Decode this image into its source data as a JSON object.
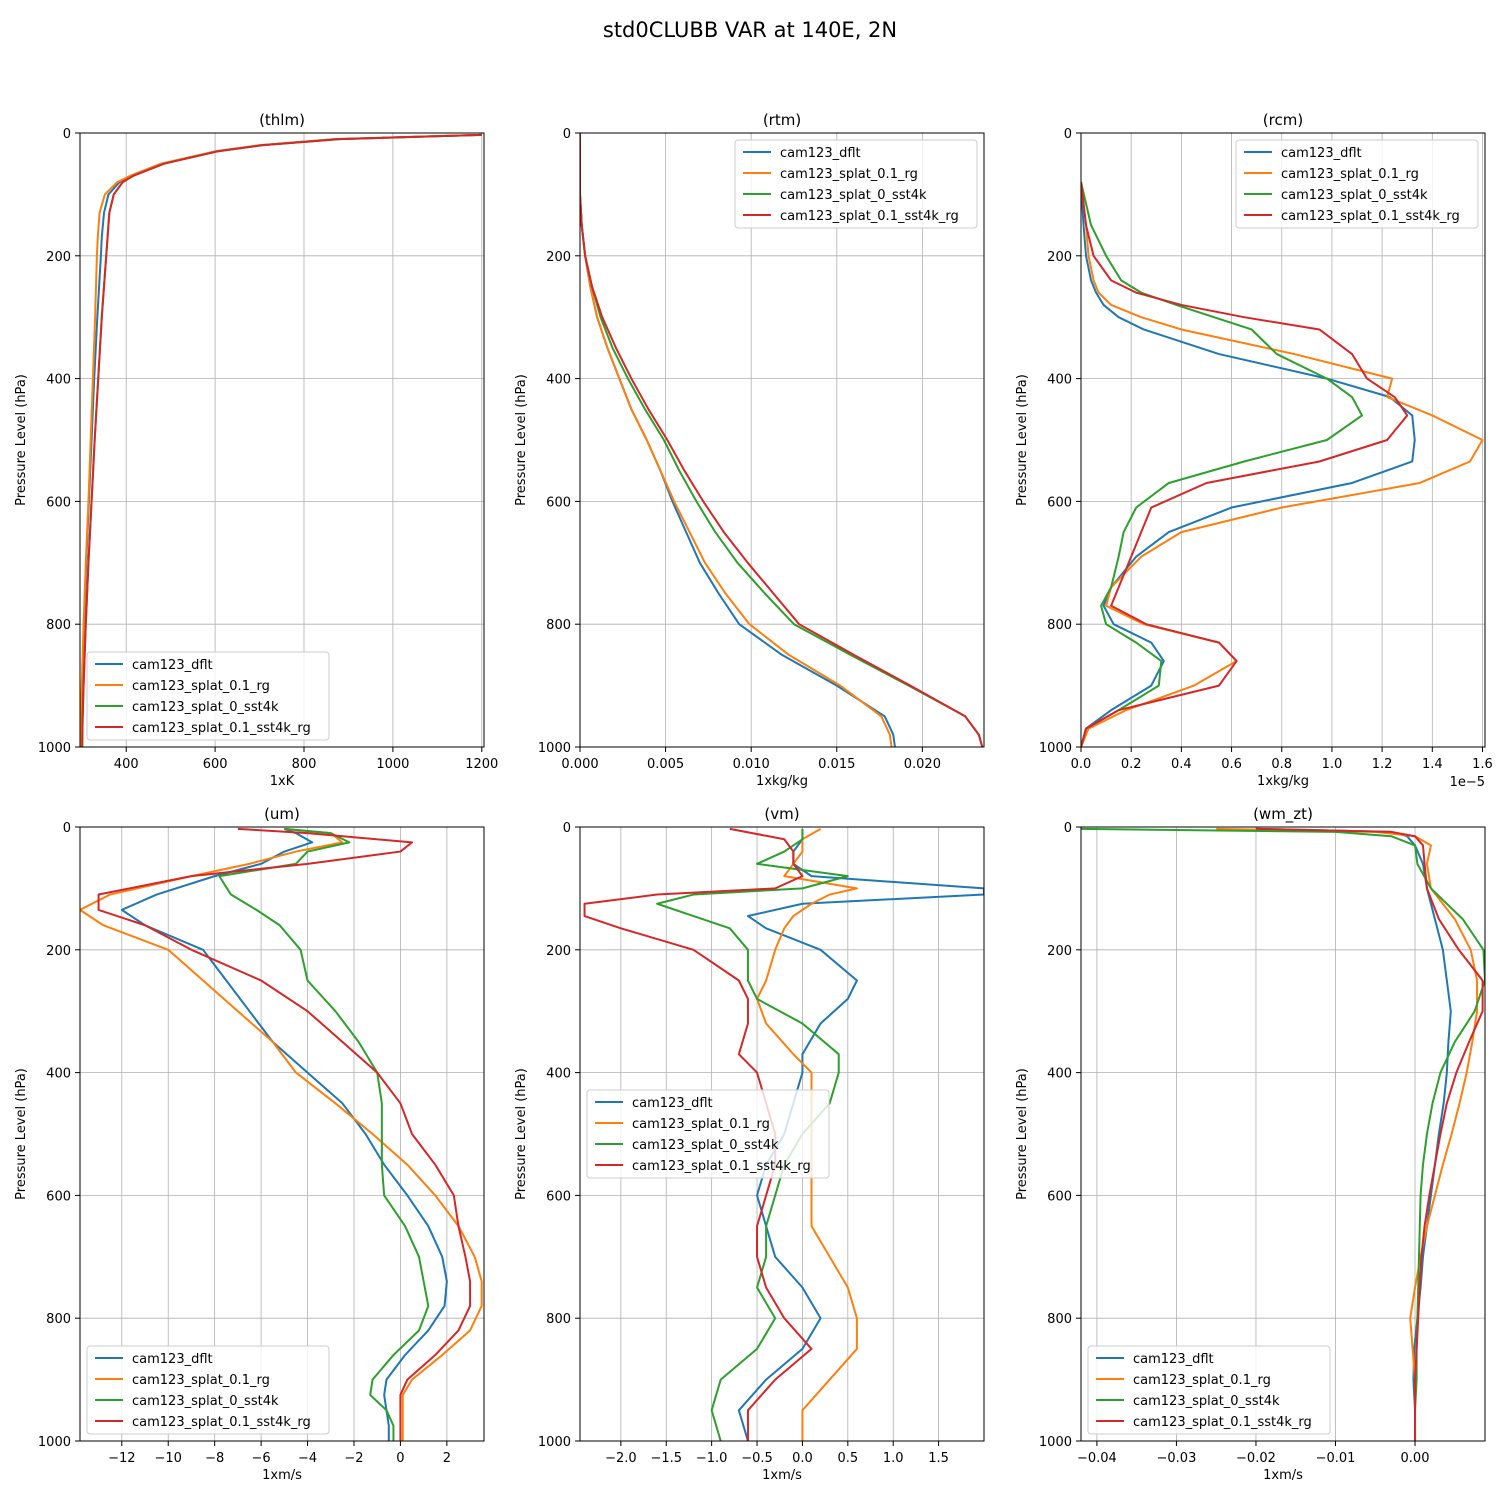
{
  "figure_title": "std0CLUBB VAR at 140E, 2N",
  "colors": {
    "cam123_dflt": "#1f77b4",
    "cam123_splat_0.1_rg": "#ff7f0e",
    "cam123_splat_0_sst4k": "#2ca02c",
    "cam123_splat_0.1_sst4k_rg": "#d62728"
  },
  "chart_data": [
    {
      "type": "line",
      "title": "(thlm)",
      "xlabel": "1xK",
      "ylabel": "Pressure Level (hPa)",
      "xlim": [
        296,
        1205
      ],
      "ylim": [
        1000,
        0
      ],
      "xticks": [
        400,
        600,
        800,
        1000,
        1200
      ],
      "xtick_labels": [
        "400",
        "600",
        "800",
        "1000",
        "1200"
      ],
      "yticks": [
        0,
        200,
        400,
        600,
        800,
        1000
      ],
      "grid": true,
      "legend": "lower left",
      "y": [
        3,
        10,
        20,
        30,
        50,
        70,
        80,
        100,
        130,
        170,
        200,
        300,
        400,
        500,
        600,
        700,
        800,
        900,
        950,
        1000
      ],
      "series": [
        {
          "name": "cam123_dflt",
          "values": [
            1200,
            870,
            700,
            600,
            480,
            410,
            385,
            360,
            350,
            345,
            343,
            335,
            328,
            322,
            316,
            310,
            305,
            301,
            299,
            298
          ]
        },
        {
          "name": "cam123_splat_0.1_rg",
          "values": [
            1200,
            870,
            700,
            600,
            478,
            408,
            380,
            352,
            340,
            336,
            334,
            330,
            325,
            320,
            315,
            309,
            304,
            300,
            298,
            297
          ]
        },
        {
          "name": "cam123_splat_0_sst4k",
          "values": [
            1200,
            880,
            705,
            605,
            485,
            415,
            392,
            372,
            362,
            358,
            355,
            345,
            337,
            329,
            322,
            315,
            309,
            304,
            302,
            301
          ]
        },
        {
          "name": "cam123_splat_0.1_sst4k_rg",
          "values": [
            1200,
            880,
            705,
            605,
            485,
            415,
            392,
            372,
            362,
            358,
            355,
            345,
            337,
            329,
            322,
            315,
            309,
            304,
            302,
            301
          ]
        }
      ]
    },
    {
      "type": "line",
      "title": "(rtm)",
      "xlabel": "1xkg/kg",
      "ylabel": "Pressure Level (hPa)",
      "xlim": [
        0,
        0.0236
      ],
      "ylim": [
        1000,
        0
      ],
      "xticks": [
        0,
        0.005,
        0.01,
        0.015,
        0.02
      ],
      "xtick_labels": [
        "0.000",
        "0.005",
        "0.010",
        "0.015",
        "0.020"
      ],
      "yticks": [
        0,
        200,
        400,
        600,
        800,
        1000
      ],
      "grid": true,
      "legend": "upper right",
      "y": [
        0,
        100,
        150,
        200,
        250,
        300,
        350,
        400,
        450,
        500,
        550,
        600,
        650,
        700,
        750,
        800,
        850,
        900,
        950,
        980,
        1000
      ],
      "series": [
        {
          "name": "cam123_dflt",
          "values": [
            0,
            0,
            0.0001,
            0.0003,
            0.0006,
            0.001,
            0.0016,
            0.0023,
            0.003,
            0.0039,
            0.0047,
            0.0054,
            0.0062,
            0.007,
            0.0081,
            0.0093,
            0.0118,
            0.015,
            0.0178,
            0.0183,
            0.0184
          ]
        },
        {
          "name": "cam123_splat_0.1_rg",
          "values": [
            0,
            0,
            0.0001,
            0.0003,
            0.0006,
            0.001,
            0.0016,
            0.0023,
            0.003,
            0.0039,
            0.0047,
            0.0055,
            0.0064,
            0.0073,
            0.0085,
            0.0099,
            0.0122,
            0.0152,
            0.0176,
            0.0181,
            0.0182
          ]
        },
        {
          "name": "cam123_splat_0_sst4k",
          "values": [
            0,
            0,
            0.0001,
            0.0003,
            0.0007,
            0.0012,
            0.0019,
            0.0028,
            0.0038,
            0.0049,
            0.0058,
            0.0068,
            0.0079,
            0.0092,
            0.0108,
            0.0125,
            0.0158,
            0.0192,
            0.0225,
            0.0233,
            0.0235
          ]
        },
        {
          "name": "cam123_splat_0.1_sst4k_rg",
          "values": [
            0,
            0,
            0.0001,
            0.0003,
            0.0007,
            0.0013,
            0.0021,
            0.003,
            0.004,
            0.0051,
            0.0061,
            0.0072,
            0.0084,
            0.0098,
            0.0113,
            0.0128,
            0.016,
            0.0193,
            0.0225,
            0.0233,
            0.0235
          ]
        }
      ]
    },
    {
      "type": "line",
      "title": "(rcm)",
      "xlabel": "1xkg/kg",
      "offset_text": "1e−5",
      "ylabel": "Pressure Level (hPa)",
      "xlim": [
        0,
        1.61e-05
      ],
      "ylim": [
        1000,
        0
      ],
      "xticks": [
        0,
        2e-06,
        4e-06,
        6e-06,
        8e-06,
        1e-05,
        1.2e-05,
        1.4e-05,
        1.6e-05
      ],
      "xtick_labels": [
        "0.0",
        "0.2",
        "0.4",
        "0.6",
        "0.8",
        "1.0",
        "1.2",
        "1.4",
        "1.6"
      ],
      "yticks": [
        0,
        200,
        400,
        600,
        800,
        1000
      ],
      "grid": true,
      "legend": "upper right",
      "y": [
        80,
        150,
        200,
        240,
        260,
        280,
        300,
        320,
        360,
        400,
        430,
        460,
        500,
        535,
        570,
        610,
        650,
        690,
        740,
        770,
        800,
        830,
        860,
        900,
        940,
        970,
        1000
      ],
      "series": [
        {
          "name": "cam123_dflt",
          "values": [
            0,
            1e-07,
            2e-07,
            4e-07,
            6e-07,
            9e-07,
            1.5e-06,
            2.5e-06,
            5.5e-06,
            9.8e-06,
            1.23e-05,
            1.32e-05,
            1.33e-05,
            1.32e-05,
            1.08e-05,
            6e-06,
            3.5e-06,
            2.2e-06,
            1.2e-06,
            9e-07,
            1.3e-06,
            2.8e-06,
            3.3e-06,
            2.8e-06,
            1.2e-06,
            2e-07,
            0
          ]
        },
        {
          "name": "cam123_splat_0.1_rg",
          "values": [
            0,
            2e-07,
            3e-07,
            5e-07,
            7e-07,
            1.2e-06,
            2.4e-06,
            4e-06,
            8.5e-06,
            1.24e-05,
            1.22e-05,
            1.4e-05,
            1.6e-05,
            1.55e-05,
            1.35e-05,
            8e-06,
            4e-06,
            2.4e-06,
            1.2e-06,
            1e-06,
            2.5e-06,
            5.5e-06,
            6.2e-06,
            4.5e-06,
            1.8e-06,
            3e-07,
            0
          ]
        },
        {
          "name": "cam123_splat_0_sst4k",
          "values": [
            0,
            4e-07,
            1e-06,
            1.6e-06,
            2.4e-06,
            3.8e-06,
            5.3e-06,
            6.8e-06,
            7.8e-06,
            9.8e-06,
            1.08e-05,
            1.12e-05,
            9.8e-06,
            6.5e-06,
            3.5e-06,
            2.2e-06,
            1.7e-06,
            1.5e-06,
            1.2e-06,
            8e-07,
            1e-06,
            2.2e-06,
            3.2e-06,
            3.1e-06,
            1.5e-06,
            2e-07,
            0
          ]
        },
        {
          "name": "cam123_splat_0.1_sst4k_rg",
          "values": [
            0,
            2e-07,
            5e-07,
            1.2e-06,
            2.2e-06,
            4e-06,
            6.5e-06,
            9.5e-06,
            1.08e-05,
            1.14e-05,
            1.25e-05,
            1.3e-05,
            1.22e-05,
            9.5e-06,
            5e-06,
            2.8e-06,
            2.4e-06,
            2e-06,
            1.5e-06,
            1.2e-06,
            2.6e-06,
            5.5e-06,
            6.2e-06,
            5.5e-06,
            1.5e-06,
            2e-07,
            0
          ]
        }
      ]
    },
    {
      "type": "line",
      "title": "(um)",
      "xlabel": "1xm/s",
      "ylabel": "Pressure Level (hPa)",
      "xlim": [
        -13.8,
        3.6
      ],
      "ylim": [
        1000,
        0
      ],
      "xticks": [
        -12,
        -10,
        -8,
        -6,
        -4,
        -2,
        0,
        2
      ],
      "xtick_labels": [
        "−12",
        "−10",
        "−8",
        "−6",
        "−4",
        "−2",
        "0",
        "2"
      ],
      "yticks": [
        0,
        200,
        400,
        600,
        800,
        1000
      ],
      "grid": true,
      "legend": "lower left",
      "y": [
        3,
        10,
        25,
        40,
        60,
        80,
        110,
        135,
        160,
        200,
        250,
        300,
        350,
        400,
        450,
        500,
        550,
        600,
        650,
        700,
        740,
        780,
        820,
        860,
        900,
        925,
        950,
        975,
        1000
      ],
      "series": [
        {
          "name": "cam123_dflt",
          "values": [
            -5,
            -4.5,
            -3.8,
            -5.0,
            -6.0,
            -8.0,
            -10.5,
            -12.0,
            -11.0,
            -8.5,
            -7.5,
            -6.5,
            -5.5,
            -4.0,
            -2.5,
            -1.5,
            -0.7,
            0.3,
            1.2,
            1.8,
            2.0,
            1.9,
            1.2,
            0.2,
            -0.6,
            -0.7,
            -0.6,
            -0.5,
            -0.5
          ]
        },
        {
          "name": "cam123_splat_0.1_rg",
          "values": [
            -5,
            -3.0,
            -2.5,
            -4.5,
            -6.5,
            -9.0,
            -12.5,
            -13.8,
            -12.8,
            -10.0,
            -8.5,
            -7.0,
            -5.5,
            -4.5,
            -2.8,
            -1.2,
            0.3,
            1.5,
            2.5,
            3.2,
            3.5,
            3.5,
            3.0,
            1.8,
            0.5,
            0.1,
            0.1,
            0.1,
            0.1
          ]
        },
        {
          "name": "cam123_splat_0_sst4k",
          "values": [
            -5,
            -3.0,
            -2.2,
            -4.0,
            -4.5,
            -7.8,
            -7.3,
            -6.2,
            -5.2,
            -4.3,
            -4.0,
            -2.8,
            -1.8,
            -1.0,
            -0.8,
            -0.8,
            -0.8,
            -0.7,
            0.2,
            0.8,
            1.0,
            1.2,
            0.8,
            -0.3,
            -1.2,
            -1.3,
            -0.6,
            -0.3,
            -0.3
          ]
        },
        {
          "name": "cam123_splat_0.1_sst4k_rg",
          "values": [
            -7,
            -4.0,
            0.5,
            0,
            -4.0,
            -9.0,
            -13.0,
            -13.0,
            -11.0,
            -9.0,
            -6.0,
            -4.0,
            -2.5,
            -1.0,
            0,
            0.5,
            1.5,
            2.3,
            2.5,
            2.8,
            3.0,
            3.0,
            2.5,
            1.5,
            0.3,
            0,
            0,
            0,
            0
          ]
        }
      ]
    },
    {
      "type": "line",
      "title": "(vm)",
      "xlabel": "1xm/s",
      "ylabel": "Pressure Level (hPa)",
      "xlim": [
        -2.45,
        2.0
      ],
      "ylim": [
        1000,
        0
      ],
      "xticks": [
        -2.0,
        -1.5,
        -1.0,
        -0.5,
        0.0,
        0.5,
        1.0,
        1.5
      ],
      "xtick_labels": [
        "−2.0",
        "−1.5",
        "−1.0",
        "−0.5",
        "0.0",
        "0.5",
        "1.0",
        "1.5"
      ],
      "yticks": [
        0,
        200,
        400,
        600,
        800,
        1000
      ],
      "grid": true,
      "legend": "center left",
      "y": [
        3,
        20,
        40,
        60,
        80,
        100,
        110,
        125,
        145,
        165,
        200,
        250,
        280,
        320,
        370,
        400,
        450,
        500,
        550,
        600,
        650,
        700,
        750,
        800,
        850,
        900,
        950,
        1000
      ],
      "series": [
        {
          "name": "cam123_dflt",
          "values": [
            0.0,
            0.0,
            -0.1,
            -0.1,
            0.1,
            2.0,
            2.0,
            0.0,
            -0.6,
            -0.4,
            0.2,
            0.6,
            0.5,
            0.2,
            0.0,
            0.0,
            -0.1,
            -0.2,
            -0.4,
            -0.5,
            -0.4,
            -0.3,
            0.0,
            0.2,
            0.0,
            -0.4,
            -0.7,
            -0.6
          ]
        },
        {
          "name": "cam123_splat_0.1_rg",
          "values": [
            0.2,
            0.0,
            0.0,
            -0.1,
            -0.2,
            0.6,
            0.3,
            0.1,
            -0.1,
            -0.2,
            -0.3,
            -0.4,
            -0.5,
            -0.4,
            -0.1,
            0.1,
            0.1,
            0.1,
            0.1,
            0.1,
            0.1,
            0.3,
            0.5,
            0.6,
            0.6,
            0.3,
            0.0,
            0.0
          ]
        },
        {
          "name": "cam123_splat_0_sst4k",
          "values": [
            0.0,
            0.0,
            -0.2,
            -0.5,
            0.5,
            0.0,
            -1.2,
            -1.6,
            -1.2,
            -0.8,
            -0.6,
            -0.6,
            -0.5,
            0.0,
            0.4,
            0.4,
            0.3,
            0.0,
            -0.2,
            -0.3,
            -0.4,
            -0.4,
            -0.5,
            -0.3,
            -0.5,
            -0.9,
            -1.0,
            -0.9
          ]
        },
        {
          "name": "cam123_splat_0.1_sst4k_rg",
          "values": [
            -0.8,
            -0.2,
            -0.1,
            -0.1,
            0.0,
            -0.3,
            -1.6,
            -2.4,
            -2.4,
            -2.0,
            -1.2,
            -0.7,
            -0.6,
            -0.6,
            -0.7,
            -0.5,
            -0.4,
            -0.3,
            -0.3,
            -0.4,
            -0.5,
            -0.5,
            -0.4,
            -0.2,
            0.1,
            -0.3,
            -0.6,
            -0.6
          ]
        }
      ]
    },
    {
      "type": "line",
      "title": "(wm_zt)",
      "xlabel": "1xm/s",
      "ylabel": "Pressure Level (hPa)",
      "xlim": [
        -0.042,
        0.0088
      ],
      "ylim": [
        1000,
        0
      ],
      "xticks": [
        -0.04,
        -0.03,
        -0.02,
        -0.01,
        0.0
      ],
      "xtick_labels": [
        "−0.04",
        "−0.03",
        "−0.02",
        "−0.01",
        "0.00"
      ],
      "yticks": [
        0,
        200,
        400,
        600,
        800,
        1000
      ],
      "grid": true,
      "legend": "lower left",
      "y": [
        3,
        8,
        15,
        30,
        60,
        100,
        150,
        200,
        250,
        300,
        350,
        400,
        450,
        500,
        550,
        600,
        650,
        700,
        750,
        800,
        850,
        900,
        950,
        1000
      ],
      "series": [
        {
          "name": "cam123_dflt",
          "values": [
            -0.02,
            -0.003,
            -0.001,
            0.0,
            0.001,
            0.0015,
            0.0025,
            0.0035,
            0.004,
            0.0045,
            0.0042,
            0.004,
            0.0036,
            0.003,
            0.0025,
            0.002,
            0.0015,
            0.001,
            0.0007,
            0.0003,
            -0.0001,
            -0.0002,
            0.0,
            0.0
          ]
        },
        {
          "name": "cam123_splat_0.1_rg",
          "values": [
            -0.025,
            -0.005,
            0.0,
            0.002,
            0.0015,
            0.002,
            0.005,
            0.007,
            0.0078,
            0.0078,
            0.0072,
            0.0065,
            0.0056,
            0.0046,
            0.0035,
            0.0025,
            0.0015,
            0.0007,
            0.0,
            -0.0006,
            -0.0003,
            0.0,
            0.0,
            0.0
          ]
        },
        {
          "name": "cam123_splat_0_sst4k",
          "values": [
            -0.042,
            -0.01,
            -0.003,
            0.0,
            0.0003,
            0.002,
            0.006,
            0.0086,
            0.0088,
            0.0075,
            0.005,
            0.0032,
            0.0022,
            0.0015,
            0.001,
            0.0007,
            0.0006,
            0.0005,
            0.0004,
            0.0003,
            0.0002,
            0.0002,
            0.0,
            0.0
          ]
        },
        {
          "name": "cam123_splat_0.1_sst4k_rg",
          "values": [
            -0.02,
            -0.003,
            0.0,
            0.001,
            0.0012,
            0.0015,
            0.003,
            0.0055,
            0.0085,
            0.0085,
            0.0068,
            0.0052,
            0.004,
            0.0032,
            0.0025,
            0.0018,
            0.0012,
            0.0008,
            0.0006,
            0.0004,
            0.0002,
            0.0,
            0.0,
            0.0
          ]
        }
      ]
    }
  ]
}
